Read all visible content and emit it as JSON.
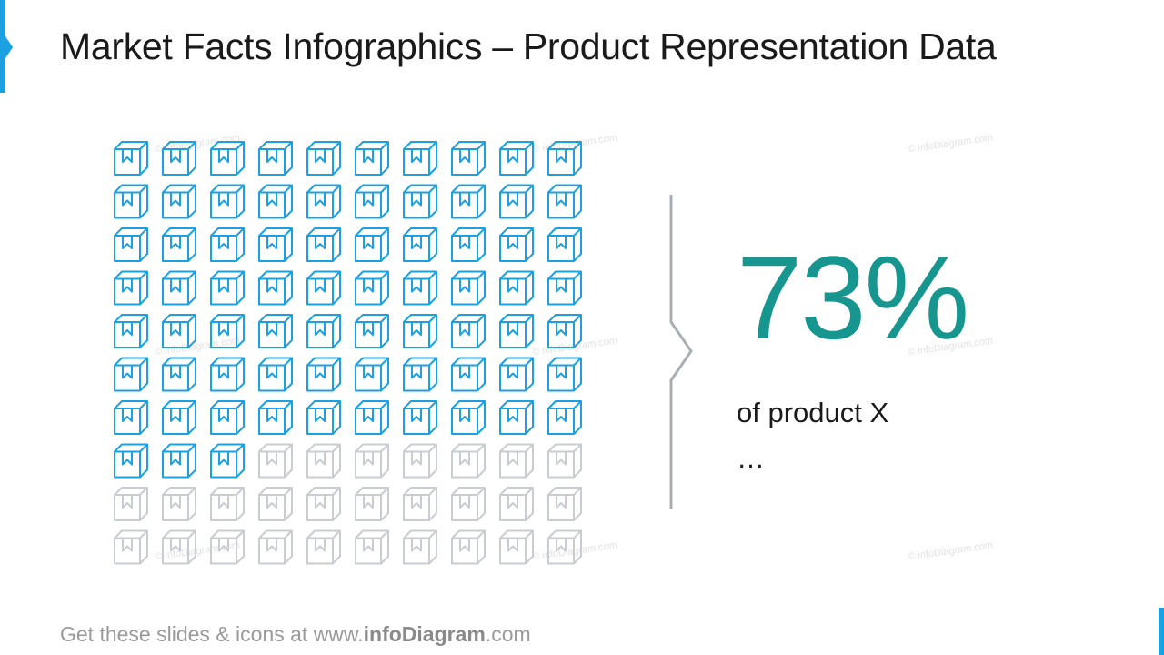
{
  "slide": {
    "title": "Market Facts Infographics – Product Representation Data"
  },
  "stat": {
    "value_label": "73%",
    "caption": "of product X",
    "detail": "…"
  },
  "icon_grid": {
    "icon": "box-icon",
    "rows": 10,
    "columns": 10,
    "highlighted_count": 73,
    "highlight_color": "#1ba1e2",
    "base_color": "#c9cdd2"
  },
  "colors": {
    "accent": "#1ba1e2",
    "value_color": "#17968f",
    "bracket_color": "#a9aeb5"
  },
  "footer": {
    "prefix": "Get these slides & icons at www.",
    "brand": "infoDiagram",
    "suffix": ".com"
  },
  "watermark_text": "© infoDiagram.com"
}
